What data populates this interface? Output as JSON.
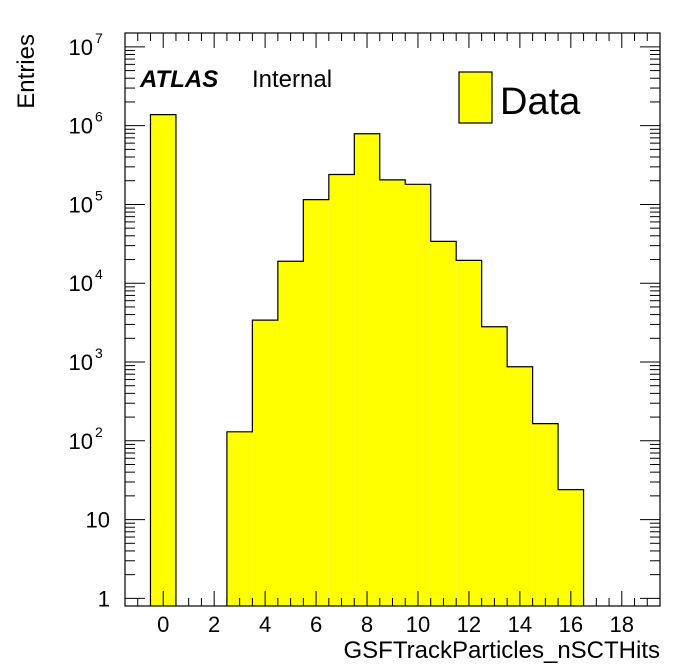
{
  "chart_data": {
    "type": "bar",
    "histogram": true,
    "xlabel": "GSFTrackParticles_nSCTHits",
    "ylabel": "Entries",
    "xlim": [
      -1.5,
      19.5
    ],
    "ylim": [
      0.8,
      15000000
    ],
    "yscale": "log",
    "grid": false,
    "legend_position": "top-right",
    "x_ticks": [
      0,
      2,
      4,
      6,
      8,
      10,
      12,
      14,
      16,
      18
    ],
    "y_ticks": [
      {
        "value": 1,
        "base": "1",
        "exp": ""
      },
      {
        "value": 10,
        "base": "10",
        "exp": ""
      },
      {
        "value": 100,
        "base": "10",
        "exp": "2"
      },
      {
        "value": 1000,
        "base": "10",
        "exp": "3"
      },
      {
        "value": 10000,
        "base": "10",
        "exp": "4"
      },
      {
        "value": 100000,
        "base": "10",
        "exp": "5"
      },
      {
        "value": 1000000,
        "base": "10",
        "exp": "6"
      },
      {
        "value": 10000000,
        "base": "10",
        "exp": "7"
      }
    ],
    "bin_width": 1,
    "series": [
      {
        "name": "Data",
        "color": "#ffff00",
        "bin_centers": [
          0,
          1,
          2,
          3,
          4,
          5,
          6,
          7,
          8,
          9,
          10,
          11,
          12,
          13,
          14,
          15,
          16
        ],
        "values": [
          1380000,
          0,
          0,
          130,
          3400,
          19000,
          115000,
          240000,
          790000,
          205000,
          180000,
          34000,
          19500,
          2800,
          870,
          165,
          24
        ]
      }
    ],
    "atlas_label": "ATLAS",
    "atlas_sublabel": "Internal"
  }
}
